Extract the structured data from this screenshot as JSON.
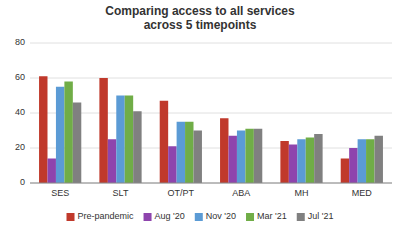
{
  "chart_data": {
    "type": "bar",
    "title": "Comparing access to all services\nacross 5 timepoints",
    "categories": [
      "SES",
      "SLT",
      "OT/PT",
      "ABA",
      "MH",
      "MED"
    ],
    "series": [
      {
        "name": "Pre-pandemic",
        "color": "#c0392b",
        "values": [
          61,
          60,
          47,
          37,
          24,
          14
        ]
      },
      {
        "name": "Aug '20",
        "color": "#8e44ad",
        "values": [
          14,
          25,
          21,
          27,
          22,
          20
        ]
      },
      {
        "name": "Nov '20",
        "color": "#5b9bd5",
        "values": [
          55,
          50,
          35,
          30,
          25,
          25
        ]
      },
      {
        "name": "Mar '21",
        "color": "#70ad47",
        "values": [
          58,
          50,
          35,
          31,
          26,
          25
        ]
      },
      {
        "name": "Jul '21",
        "color": "#808080",
        "values": [
          46,
          41,
          30,
          31,
          28,
          27
        ]
      }
    ],
    "ylim": [
      0,
      80
    ],
    "yticks": [
      0,
      20,
      40,
      60,
      80
    ],
    "grid": true,
    "legend": "bottom"
  }
}
